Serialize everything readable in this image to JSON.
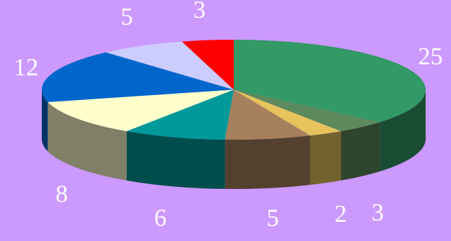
{
  "chart_data": {
    "type": "pie",
    "style": "3d",
    "values": [
      25,
      3,
      2,
      5,
      6,
      8,
      12,
      5,
      3
    ],
    "labels": [
      "25",
      "3",
      "2",
      "5",
      "6",
      "8",
      "12",
      "5",
      "3"
    ],
    "colors": [
      "#339966",
      "#5c8a5c",
      "#e6c35c",
      "#a6805c",
      "#009999",
      "#ffffcc",
      "#0066cc",
      "#ccccff",
      "#ff0000"
    ],
    "background": "#cc99ff",
    "label_color": "#ffffff",
    "legend": "none"
  }
}
